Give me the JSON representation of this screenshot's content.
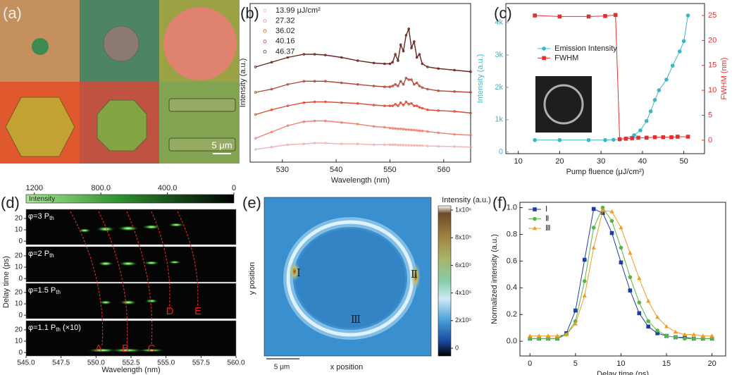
{
  "chart_data": [
    {
      "type": "image",
      "label": "(a)",
      "scale_bar": "5 μm"
    },
    {
      "type": "line",
      "label": "(b)",
      "xlabel": "Wavelength (nm)",
      "ylabel": "Intensity (a.u.)",
      "xlim": [
        524,
        565
      ],
      "xticks": [
        530,
        540,
        550,
        560
      ],
      "ylim": [
        0,
        100
      ],
      "legend": "upper left",
      "x": [
        525,
        528,
        531,
        534,
        536,
        538,
        541,
        544,
        547,
        549,
        550,
        550.5,
        551,
        551.5,
        552,
        552.5,
        553,
        553.5,
        554,
        554.5,
        555,
        555.5,
        556,
        557,
        559,
        562,
        565
      ],
      "series": [
        {
          "name": "13.99 μJ/cm²",
          "color": "#f2b4b4",
          "marker": "circle-open",
          "values": [
            8,
            9.5,
            11,
            11.5,
            12,
            12,
            11.5,
            11.5,
            11,
            11,
            11,
            11,
            11,
            10.8,
            10.8,
            10.7,
            10.7,
            10.6,
            10.6,
            10.5,
            10.5,
            10.4,
            10.4,
            10.2,
            10,
            9.8,
            9.5
          ]
        },
        {
          "name": "27.32",
          "color": "#ef8272",
          "marker": "circle-open",
          "values": [
            15,
            19,
            23,
            25.5,
            26,
            26,
            25,
            24,
            22.5,
            22,
            21.5,
            21.3,
            21.2,
            21,
            21,
            20.8,
            20.6,
            20.5,
            20.3,
            20.2,
            20,
            19.8,
            19.7,
            19.3,
            18.5,
            17.5,
            17
          ]
        },
        {
          "name": "36.02",
          "color": "#e04a36",
          "marker": "circle-open",
          "values": [
            30,
            33,
            35.5,
            37.5,
            38,
            38,
            37.5,
            37,
            36,
            35.5,
            35.5,
            35.5,
            36.5,
            35.5,
            37.5,
            36,
            38,
            36.5,
            37,
            35.5,
            35.5,
            34.5,
            34,
            33,
            32.5,
            32,
            31
          ]
        },
        {
          "name": "40.16",
          "color": "#b44a3c",
          "marker": "circle-open",
          "values": [
            44,
            46,
            49,
            51,
            51,
            51,
            50,
            49,
            48,
            47.5,
            47.5,
            48,
            49,
            48,
            51,
            49,
            53,
            52,
            52,
            49,
            50,
            48,
            47,
            46,
            45,
            44.5,
            44
          ]
        },
        {
          "name": "46.37",
          "color": "#6a2620",
          "marker": "circle-open",
          "values": [
            60,
            63,
            66,
            68,
            68,
            67.5,
            66,
            64,
            62.5,
            62,
            62,
            63,
            68,
            64,
            74,
            70,
            80,
            84,
            72,
            76,
            66,
            68,
            62,
            60,
            59,
            58,
            57
          ]
        }
      ]
    },
    {
      "type": "line",
      "label": "(c)",
      "xlabel": "Pump fluence (μJ/cm²)",
      "ylabel": "Intensity (a.u.)",
      "y2label": "FWHM (nm)",
      "xlim": [
        7,
        55
      ],
      "xticks": [
        10,
        20,
        30,
        40,
        50
      ],
      "ylim": [
        -50,
        4590
      ],
      "yticks": [
        0,
        {
          "value": 1000,
          "label": "1k"
        },
        {
          "value": 2000,
          "label": "2k"
        },
        {
          "value": 3000,
          "label": "3k"
        },
        {
          "value": 4000,
          "label": "4k"
        }
      ],
      "y2lim": [
        -2.7,
        27.4
      ],
      "y2ticks": [
        0,
        5,
        10,
        15,
        20,
        25
      ],
      "legend": "center left",
      "series": [
        {
          "name": "Emission Intensity",
          "color": "#3cb6c6",
          "marker": "circle",
          "x": [
            14,
            20,
            27,
            31,
            33,
            34.5,
            36,
            38,
            39.5,
            41,
            42,
            43,
            44,
            45.8,
            47.3,
            49,
            50,
            51
          ],
          "values": [
            370,
            370,
            370,
            370,
            380,
            390,
            420,
            520,
            670,
            960,
            1260,
            1610,
            1910,
            2240,
            2670,
            3110,
            3430,
            4220
          ]
        },
        {
          "name": "FWHM",
          "color": "#e03030",
          "marker": "square",
          "axis": "y2",
          "x": [
            14,
            20,
            27,
            31,
            33.5,
            34.5,
            36,
            37.5,
            39,
            41,
            43,
            45,
            47,
            48.5,
            51
          ],
          "values": [
            25,
            24.8,
            24.8,
            24.9,
            25.1,
            0.2,
            0.3,
            0.4,
            0.5,
            0.5,
            0.6,
            0.6,
            0.6,
            0.7,
            0.7
          ]
        }
      ]
    },
    {
      "type": "heatmap",
      "label": "(d)",
      "colorbar_label": "Intensity",
      "clim": [
        0,
        1250
      ],
      "cticks": [
        1200,
        {
          "value": 800,
          "label": "800.0"
        },
        {
          "value": 400,
          "label": "400.0"
        },
        0
      ],
      "xlabel": "Wavelength (nm)",
      "xlim": [
        545,
        560
      ],
      "xticks": [
        {
          "value": 545,
          "label": "545.0"
        },
        {
          "value": 547.5,
          "label": "547.5"
        },
        {
          "value": 550,
          "label": "550.0"
        },
        {
          "value": 552.5,
          "label": "552.5"
        },
        {
          "value": 555,
          "label": "555.0"
        },
        {
          "value": 557.5,
          "label": "557.5"
        },
        {
          "value": 560,
          "label": "560.0"
        }
      ],
      "ylabel": "Delay time (ps)",
      "ylim": [
        -3,
        28
      ],
      "yticks": [
        0,
        10,
        20
      ],
      "panels": [
        {
          "label": "φ=3 P",
          "label_sub": "th"
        },
        {
          "label": "φ=2 P",
          "label_sub": "th"
        },
        {
          "label": "φ=1.5 P",
          "label_sub": "th"
        },
        {
          "label": "φ=1.1 P",
          "label_sub": "th",
          "label_suffix": " (×10)"
        }
      ],
      "annotations": [
        "A",
        "B",
        "C",
        "D",
        "E"
      ]
    },
    {
      "type": "heatmap",
      "label": "(e)",
      "colorbar_label": "Intensity (a.u.)",
      "clim": [
        -56000,
        1000000
      ],
      "cticks": [
        0,
        {
          "value": 200000,
          "label": "2x10⁵"
        },
        {
          "value": 400000,
          "label": "4x10⁵"
        },
        {
          "value": 600000,
          "label": "6x10⁵"
        },
        {
          "value": 800000,
          "label": "8x10⁵"
        },
        {
          "value": 1000000,
          "label": "1x10⁶"
        }
      ],
      "xlabel": "x position",
      "ylabel": "y position",
      "scale_bar": "5 μm",
      "annotations": [
        "Ⅰ",
        "Ⅱ",
        "Ⅲ"
      ]
    },
    {
      "type": "line",
      "label": "(f)",
      "xlabel": "Delay time (ps)",
      "ylabel": "Normalized intensity (a.u.)",
      "xlim": [
        -1.1,
        21.5
      ],
      "xticks": [
        0,
        5,
        10,
        15,
        20
      ],
      "ylim": [
        -0.11,
        1.04
      ],
      "yticks": [
        {
          "value": 0,
          "label": "0.0"
        },
        0.2,
        0.4,
        0.6,
        0.8,
        {
          "value": 1,
          "label": "1.0"
        }
      ],
      "legend": "upper left",
      "x": [
        0,
        1,
        2,
        3,
        4,
        5,
        6,
        7,
        8,
        9,
        10,
        11,
        12,
        13,
        14,
        15,
        16,
        17,
        18,
        19,
        20
      ],
      "series": [
        {
          "name": "Ⅰ",
          "color": "#1f3fa0",
          "marker": "square",
          "values": [
            0.02,
            0.02,
            0.02,
            0.02,
            0.06,
            0.23,
            0.61,
            0.99,
            0.96,
            0.81,
            0.59,
            0.38,
            0.21,
            0.11,
            0.06,
            0.04,
            0.03,
            0.03,
            0.02,
            0.02,
            0.02
          ]
        },
        {
          "name": "Ⅱ",
          "color": "#5ab546",
          "marker": "circle",
          "values": [
            0.02,
            0.02,
            0.02,
            0.02,
            0.05,
            0.15,
            0.45,
            0.85,
            1.0,
            0.9,
            0.7,
            0.48,
            0.29,
            0.15,
            0.08,
            0.04,
            0.03,
            0.02,
            0.02,
            0.02,
            0.02
          ]
        },
        {
          "name": "Ⅲ",
          "color": "#f39a24",
          "marker": "triangle",
          "values": [
            0.04,
            0.04,
            0.04,
            0.04,
            0.05,
            0.13,
            0.34,
            0.7,
            0.98,
            0.97,
            0.85,
            0.66,
            0.47,
            0.3,
            0.18,
            0.11,
            0.07,
            0.05,
            0.05,
            0.04,
            0.04
          ]
        }
      ]
    }
  ]
}
